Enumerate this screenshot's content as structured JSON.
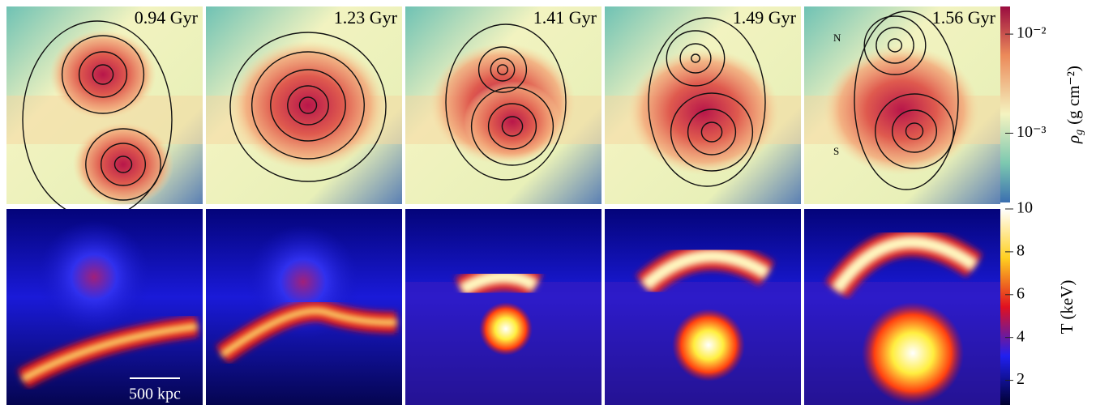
{
  "figure": {
    "panels": [
      {
        "time": "0.94 Gyr"
      },
      {
        "time": "1.23 Gyr"
      },
      {
        "time": "1.41 Gyr"
      },
      {
        "time": "1.49 Gyr"
      },
      {
        "time": "1.56 Gyr"
      }
    ],
    "north_label": "N",
    "south_label": "S",
    "scale_bar": "500 kpc",
    "density_colorbar": {
      "symbol": "ρ",
      "subscript": "g",
      "unit": "(g cm⁻²)",
      "log": true,
      "lim": [
        0.0002,
        0.019
      ],
      "ticks": [
        {
          "value": 0.01,
          "label": "10⁻²"
        },
        {
          "value": 0.001,
          "label": "10⁻³"
        }
      ]
    },
    "temperature_colorbar": {
      "label": "T (keV)",
      "log": false,
      "lim": [
        0.85,
        10
      ],
      "ticks": [
        2,
        4,
        6,
        8,
        10
      ]
    }
  }
}
